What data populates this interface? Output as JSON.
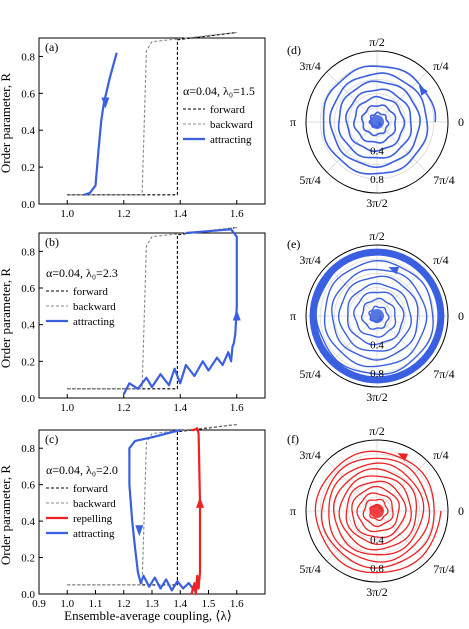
{
  "figure": {
    "ylabel": "Order parameter, R",
    "xlabel": "Ensemble-average coupling, ⟨λ⟩"
  },
  "colors": {
    "forward": "#000000",
    "backward": "#888888",
    "attracting": "#3a5fe0",
    "repelling": "#ee2222"
  },
  "chart_data": [
    {
      "panel": "(a)",
      "type": "line",
      "params": "α=0.04, λ₀=1.5",
      "xlim": [
        0.9,
        1.7
      ],
      "ylim": [
        0.0,
        0.9
      ],
      "xticks": [
        "1.0",
        "1.2",
        "1.4",
        "1.6"
      ],
      "yticks": [
        "0.0",
        "0.2",
        "0.4",
        "0.6",
        "0.8"
      ],
      "show_xticklabels": true,
      "legend": [
        "forward",
        "backward",
        "attracting"
      ],
      "series": [
        {
          "name": "forward",
          "style": "dashed",
          "color": "forward",
          "x": [
            1.0,
            1.39,
            1.39,
            1.6
          ],
          "y": [
            0.05,
            0.05,
            0.89,
            0.93
          ]
        },
        {
          "name": "backward",
          "style": "dashed",
          "color": "backward",
          "x": [
            1.6,
            1.3,
            1.28,
            1.265,
            1.0
          ],
          "y": [
            0.93,
            0.88,
            0.83,
            0.05,
            0.05
          ]
        },
        {
          "name": "attracting",
          "style": "solid",
          "color": "attracting",
          "x": [
            1.06,
            1.08,
            1.1,
            1.11,
            1.12,
            1.13,
            1.15,
            1.175
          ],
          "y": [
            0.05,
            0.06,
            0.1,
            0.28,
            0.45,
            0.55,
            0.68,
            0.82
          ]
        }
      ],
      "arrows": [
        {
          "color": "attracting",
          "x": 1.135,
          "y": 0.55,
          "dir": "down"
        }
      ]
    },
    {
      "panel": "(b)",
      "type": "line",
      "params": "α=0.04, λ₀=2.3",
      "xlim": [
        0.9,
        1.7
      ],
      "ylim": [
        0.0,
        0.9
      ],
      "xticks": [
        "1.0",
        "1.2",
        "1.4",
        "1.6"
      ],
      "yticks": [
        "0.0",
        "0.2",
        "0.4",
        "0.6",
        "0.8"
      ],
      "show_xticklabels": true,
      "legend": [
        "forward",
        "backward",
        "attracting"
      ],
      "series": [
        {
          "name": "forward",
          "style": "dashed",
          "color": "forward",
          "x": [
            1.0,
            1.39,
            1.39,
            1.6
          ],
          "y": [
            0.05,
            0.05,
            0.89,
            0.93
          ]
        },
        {
          "name": "backward",
          "style": "dashed",
          "color": "backward",
          "x": [
            1.6,
            1.3,
            1.28,
            1.265,
            1.0
          ],
          "y": [
            0.93,
            0.88,
            0.83,
            0.05,
            0.05
          ]
        },
        {
          "name": "attracting",
          "style": "solid",
          "color": "attracting",
          "x": [
            1.2,
            1.22,
            1.25,
            1.28,
            1.3,
            1.33,
            1.36,
            1.38,
            1.4,
            1.42,
            1.45,
            1.48,
            1.5,
            1.53,
            1.55,
            1.57,
            1.58,
            1.585,
            1.59,
            1.595,
            1.6,
            1.6,
            1.58,
            1.5,
            1.42
          ],
          "y": [
            0.02,
            0.08,
            0.05,
            0.11,
            0.06,
            0.13,
            0.07,
            0.16,
            0.08,
            0.18,
            0.12,
            0.2,
            0.15,
            0.22,
            0.18,
            0.25,
            0.2,
            0.28,
            0.3,
            0.35,
            0.5,
            0.88,
            0.92,
            0.91,
            0.9
          ]
        }
      ],
      "arrows": [
        {
          "color": "attracting",
          "x": 1.6,
          "y": 0.45,
          "dir": "up"
        }
      ]
    },
    {
      "panel": "(c)",
      "type": "line",
      "params": "α=0.04, λ₀=2.0",
      "xlim": [
        0.9,
        1.7
      ],
      "ylim": [
        0.0,
        0.9
      ],
      "xticks": [
        "0.9",
        "1.0",
        "1.1",
        "1.2",
        "1.3",
        "1.4",
        "1.5",
        "1.6"
      ],
      "yticks": [
        "0.0",
        "0.2",
        "0.4",
        "0.6",
        "0.8"
      ],
      "show_xticklabels": true,
      "legend": [
        "forward",
        "backward",
        "repelling",
        "attracting"
      ],
      "series": [
        {
          "name": "forward",
          "style": "dashed",
          "color": "forward",
          "x": [
            1.0,
            1.39,
            1.39,
            1.6
          ],
          "y": [
            0.05,
            0.05,
            0.89,
            0.93
          ]
        },
        {
          "name": "backward",
          "style": "dashed",
          "color": "backward",
          "x": [
            1.6,
            1.3,
            1.28,
            1.265,
            1.0
          ],
          "y": [
            0.93,
            0.88,
            0.83,
            0.05,
            0.05
          ]
        },
        {
          "name": "attracting",
          "style": "solid",
          "color": "attracting",
          "x": [
            1.4,
            1.3,
            1.24,
            1.22,
            1.22,
            1.23,
            1.24,
            1.25,
            1.26,
            1.27,
            1.29,
            1.31,
            1.33,
            1.35,
            1.37,
            1.39,
            1.41,
            1.43,
            1.45,
            1.46
          ],
          "y": [
            0.9,
            0.86,
            0.84,
            0.8,
            0.6,
            0.4,
            0.25,
            0.12,
            0.06,
            0.1,
            0.04,
            0.09,
            0.03,
            0.08,
            0.02,
            0.07,
            0.03,
            0.06,
            0.02,
            0.04
          ]
        },
        {
          "name": "repelling",
          "style": "solid",
          "color": "repelling",
          "x": [
            1.44,
            1.45,
            1.455,
            1.46,
            1.465,
            1.47,
            1.47,
            1.465,
            1.46,
            1.45,
            1.44
          ],
          "y": [
            0.0,
            0.06,
            0.0,
            0.1,
            0.03,
            0.12,
            0.5,
            0.88,
            0.91,
            0.9,
            0.9
          ]
        }
      ],
      "arrows": [
        {
          "color": "attracting",
          "x": 1.255,
          "y": 0.35,
          "dir": "down"
        },
        {
          "color": "repelling",
          "x": 1.47,
          "y": 0.5,
          "dir": "up"
        }
      ]
    },
    {
      "panel": "(d)",
      "type": "polar",
      "angle_labels": [
        "0",
        "π/4",
        "π/2",
        "3π/4",
        "π",
        "5π/4",
        "3π/2",
        "7π/4"
      ],
      "radial_ticks": [
        "0.4",
        "0.8"
      ],
      "rmax": 1.0,
      "color": "attracting",
      "trajectory": {
        "r_start": 0.82,
        "r_end": 0.04,
        "turns": 7,
        "stroke": 1.6
      },
      "arrow": {
        "color": "attracting",
        "angle_deg": 35,
        "r": 0.78
      }
    },
    {
      "panel": "(e)",
      "type": "polar",
      "angle_labels": [
        "0",
        "π/4",
        "π/2",
        "3π/4",
        "π",
        "5π/4",
        "3π/2",
        "7π/4"
      ],
      "radial_ticks": [
        "0.4",
        "0.8"
      ],
      "rmax": 1.0,
      "color": "attracting",
      "trajectory": {
        "r_start": 0.9,
        "r_end": 0.05,
        "turns": 8,
        "stroke": 1.4
      },
      "outer_band": {
        "r": 0.9,
        "width": 7
      },
      "arrow": {
        "color": "attracting",
        "angle_deg": 70,
        "r": 0.7
      }
    },
    {
      "panel": "(f)",
      "type": "polar",
      "angle_labels": [
        "0",
        "π/4",
        "π/2",
        "3π/4",
        "π",
        "5π/4",
        "3π/2",
        "7π/4"
      ],
      "radial_ticks": [
        "0.4",
        "0.8"
      ],
      "rmax": 1.0,
      "color": "repelling",
      "trajectory": {
        "r_start": 0.06,
        "r_end": 0.9,
        "turns": 10,
        "stroke": 1.3
      },
      "arrow": {
        "color": "repelling",
        "angle_deg": 65,
        "r": 0.86
      }
    }
  ]
}
